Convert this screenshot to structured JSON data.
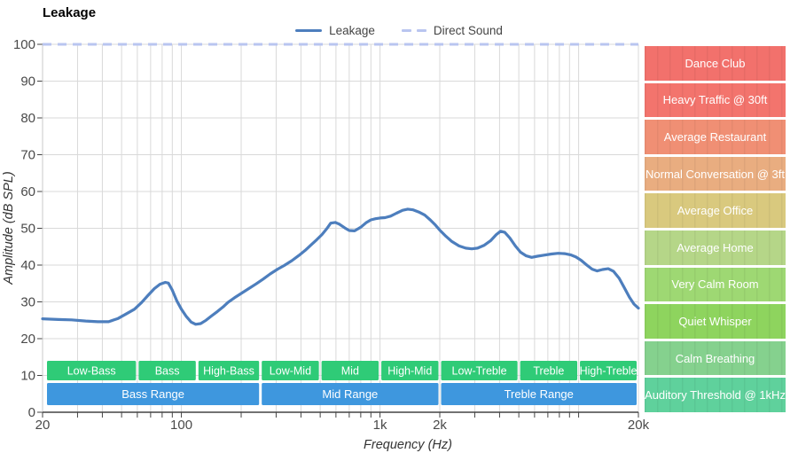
{
  "header": {
    "title": "Leakage"
  },
  "legend": {
    "items": [
      {
        "label": "Leakage",
        "swatch": "solid-line",
        "color": "#4d7ebd"
      },
      {
        "label": "Direct Sound",
        "swatch": "dashed-line",
        "color": "#b9c5f0"
      }
    ]
  },
  "axes": {
    "x_label": "Frequency (Hz)",
    "y_label": "Amplitude (dB SPL)",
    "x_tick_labels": [
      {
        "f": 20,
        "label": "20"
      },
      {
        "f": 100,
        "label": "100"
      },
      {
        "f": 1000,
        "label": "1k"
      },
      {
        "f": 2000,
        "label": "2k"
      },
      {
        "f": 20000,
        "label": "20k"
      }
    ],
    "y_ticks": [
      100,
      90,
      80,
      70,
      60,
      50,
      40,
      30,
      20,
      10,
      0
    ]
  },
  "colors": {
    "leakage_line": "#4d7ebd",
    "direct_sound_line": "#b9c5f0",
    "grid": "#d9d9d9",
    "axis_line": "#444444",
    "y_axis_line": "#c9c9c9",
    "tick_text": "#4a4a4a",
    "axis_title_text": "#333333",
    "band_green": "#2fcb77",
    "band_blue": "#3e97de",
    "band_text": "#ffffff"
  },
  "chart_data": {
    "type": "line",
    "title": "Leakage",
    "xlabel": "Frequency (Hz)",
    "ylabel": "Amplitude (dB SPL)",
    "x_scale": "log",
    "x_range": [
      20,
      20000
    ],
    "y_range": [
      0,
      100
    ],
    "grid": true,
    "legend_position": "top-center",
    "series": [
      {
        "name": "Leakage",
        "style": "solid",
        "color": "#4d7ebd",
        "points": [
          [
            20,
            25.4
          ],
          [
            24,
            25.2
          ],
          [
            28,
            25.1
          ],
          [
            33,
            24.8
          ],
          [
            38,
            24.6
          ],
          [
            43,
            24.6
          ],
          [
            48,
            25.5
          ],
          [
            53,
            26.8
          ],
          [
            58,
            28.0
          ],
          [
            63,
            29.8
          ],
          [
            68,
            31.8
          ],
          [
            73,
            33.6
          ],
          [
            78,
            34.8
          ],
          [
            83,
            35.3
          ],
          [
            86,
            35.1
          ],
          [
            90,
            33.2
          ],
          [
            95,
            30.2
          ],
          [
            100,
            28.0
          ],
          [
            106,
            26.0
          ],
          [
            112,
            24.5
          ],
          [
            118,
            23.9
          ],
          [
            125,
            24.1
          ],
          [
            133,
            25.0
          ],
          [
            142,
            26.2
          ],
          [
            152,
            27.4
          ],
          [
            162,
            28.6
          ],
          [
            172,
            29.9
          ],
          [
            185,
            31.1
          ],
          [
            200,
            32.3
          ],
          [
            218,
            33.6
          ],
          [
            238,
            34.9
          ],
          [
            258,
            36.2
          ],
          [
            280,
            37.6
          ],
          [
            305,
            38.9
          ],
          [
            330,
            39.9
          ],
          [
            360,
            41.2
          ],
          [
            390,
            42.6
          ],
          [
            420,
            44.0
          ],
          [
            450,
            45.5
          ],
          [
            480,
            46.9
          ],
          [
            510,
            48.3
          ],
          [
            540,
            49.9
          ],
          [
            565,
            51.4
          ],
          [
            595,
            51.6
          ],
          [
            625,
            51.1
          ],
          [
            665,
            50.1
          ],
          [
            700,
            49.4
          ],
          [
            745,
            49.3
          ],
          [
            800,
            50.3
          ],
          [
            850,
            51.5
          ],
          [
            900,
            52.3
          ],
          [
            950,
            52.6
          ],
          [
            1000,
            52.8
          ],
          [
            1060,
            52.9
          ],
          [
            1130,
            53.3
          ],
          [
            1210,
            54.1
          ],
          [
            1300,
            54.9
          ],
          [
            1380,
            55.2
          ],
          [
            1470,
            55.0
          ],
          [
            1570,
            54.4
          ],
          [
            1680,
            53.6
          ],
          [
            1790,
            52.3
          ],
          [
            1900,
            50.9
          ],
          [
            2000,
            49.5
          ],
          [
            2150,
            47.8
          ],
          [
            2300,
            46.4
          ],
          [
            2500,
            45.2
          ],
          [
            2700,
            44.6
          ],
          [
            2900,
            44.4
          ],
          [
            3100,
            44.6
          ],
          [
            3350,
            45.4
          ],
          [
            3600,
            46.6
          ],
          [
            3850,
            48.3
          ],
          [
            4050,
            49.2
          ],
          [
            4250,
            48.9
          ],
          [
            4500,
            47.4
          ],
          [
            4800,
            45.2
          ],
          [
            5100,
            43.5
          ],
          [
            5450,
            42.5
          ],
          [
            5800,
            42.1
          ],
          [
            6200,
            42.4
          ],
          [
            6700,
            42.7
          ],
          [
            7300,
            43.0
          ],
          [
            7900,
            43.2
          ],
          [
            8500,
            43.1
          ],
          [
            9100,
            42.8
          ],
          [
            9700,
            42.2
          ],
          [
            10300,
            41.3
          ],
          [
            11000,
            40.0
          ],
          [
            11700,
            38.9
          ],
          [
            12400,
            38.4
          ],
          [
            13200,
            38.8
          ],
          [
            14100,
            39.0
          ],
          [
            15000,
            38.3
          ],
          [
            16000,
            36.4
          ],
          [
            17000,
            33.8
          ],
          [
            18000,
            31.3
          ],
          [
            19000,
            29.4
          ],
          [
            20000,
            28.3
          ]
        ]
      },
      {
        "name": "Direct Sound",
        "style": "dashed",
        "color": "#b9c5f0",
        "points": [
          [
            20,
            100
          ],
          [
            20000,
            100
          ]
        ]
      }
    ],
    "frequency_bands": [
      {
        "label": "Low-Bass",
        "from": 20,
        "to": 60
      },
      {
        "label": "Bass",
        "from": 60,
        "to": 120
      },
      {
        "label": "High-Bass",
        "from": 120,
        "to": 250
      },
      {
        "label": "Low-Mid",
        "from": 250,
        "to": 500
      },
      {
        "label": "Mid",
        "from": 500,
        "to": 1000
      },
      {
        "label": "High-Mid",
        "from": 1000,
        "to": 2000
      },
      {
        "label": "Low-Treble",
        "from": 2000,
        "to": 5000
      },
      {
        "label": "Treble",
        "from": 5000,
        "to": 10000
      },
      {
        "label": "High-Treble",
        "from": 10000,
        "to": 20000
      }
    ],
    "range_bands": [
      {
        "label": "Bass Range",
        "from": 20,
        "to": 250
      },
      {
        "label": "Mid Range",
        "from": 250,
        "to": 2000
      },
      {
        "label": "Treble Range",
        "from": 2000,
        "to": 20000
      }
    ],
    "noise_levels": [
      {
        "label": "Dance Club",
        "color": "#f2716c"
      },
      {
        "label": "Heavy Traffic @ 30ft",
        "color": "#f3746d"
      },
      {
        "label": "Average Restaurant",
        "color": "#f08f74"
      },
      {
        "label": "Normal Conversation @ 3ft",
        "color": "#e9ad80"
      },
      {
        "label": "Average Office",
        "color": "#d9c97e"
      },
      {
        "label": "Average Home",
        "color": "#b5d688"
      },
      {
        "label": "Very Calm Room",
        "color": "#9ed873"
      },
      {
        "label": "Quiet Whisper",
        "color": "#8ed45e"
      },
      {
        "label": "Calm Breathing",
        "color": "#85d18e"
      },
      {
        "label": "Auditory Threshold @ 1kHz",
        "color": "#5fd19c"
      }
    ]
  }
}
